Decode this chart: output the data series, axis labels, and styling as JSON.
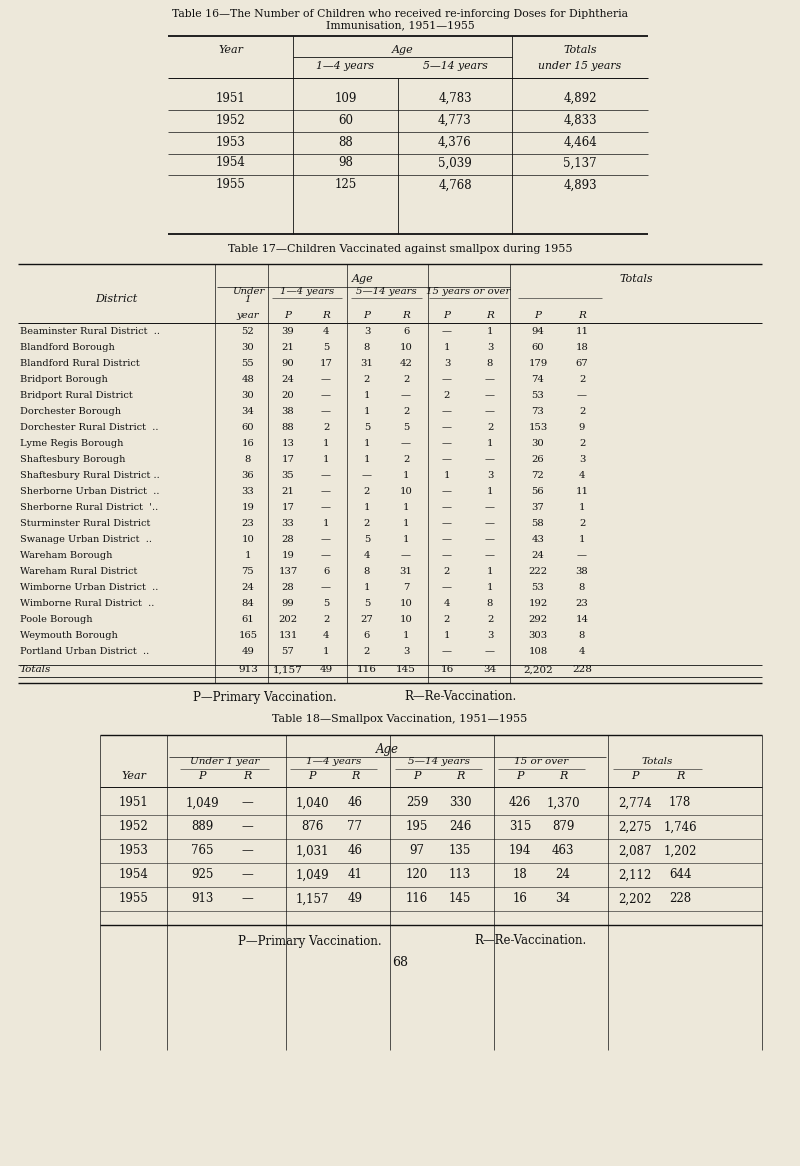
{
  "bg_color": "#ede8da",
  "page_number": "68",
  "table16": {
    "title_line1": "Table 16—The Number of Children who received re-inforcing Doses for Diphthеria",
    "title_line2": "Immunisation, 1951—1955",
    "rows": [
      [
        "1951",
        "109",
        "4,783",
        "4,892"
      ],
      [
        "1952",
        "60",
        "4,773",
        "4,833"
      ],
      [
        "1953",
        "88",
        "4,376",
        "4,464"
      ],
      [
        "1954",
        "98",
        "5,039",
        "5,137"
      ],
      [
        "1955",
        "125",
        "4,768",
        "4,893"
      ]
    ]
  },
  "table17": {
    "title": "Table 17—Children Vaccinated against smallpox during 1955",
    "rows": [
      [
        "Beaminster Rural District  ..",
        "..",
        "52",
        "39",
        "4",
        "3",
        "6",
        "—",
        "1",
        "94",
        "11"
      ],
      [
        "Blandford Borough",
        "..",
        "30",
        "21",
        "5",
        "8",
        "10",
        "1",
        "3",
        "60",
        "18"
      ],
      [
        "Blandford Rural District",
        "..",
        "55",
        "90",
        "17",
        "31",
        "42",
        "3",
        "8",
        "179",
        "67"
      ],
      [
        "Bridport Borough",
        "..",
        "48",
        "24",
        "—",
        "2",
        "2",
        "—",
        "—",
        "74",
        "2"
      ],
      [
        "Bridport Rural District",
        "..",
        "30",
        "20",
        "—",
        "1",
        "—",
        "2",
        "—",
        "53",
        "—"
      ],
      [
        "Dorchester Borough",
        "..",
        "34",
        "38",
        "—",
        "1",
        "2",
        "—",
        "—",
        "73",
        "2"
      ],
      [
        "Dorchester Rural District  ..",
        "..",
        "60",
        "88",
        "2",
        "5",
        "5",
        "—",
        "2",
        "153",
        "9"
      ],
      [
        "Lyme Regis Borough",
        "..",
        "16",
        "13",
        "1",
        "1",
        "—",
        "—",
        "1",
        "30",
        "2"
      ],
      [
        "Shaftesbury Borough",
        "..",
        "8",
        "17",
        "1",
        "1",
        "2",
        "—",
        "—",
        "26",
        "3"
      ],
      [
        "Shaftesbury Rural District ..",
        "..",
        "36",
        "35",
        "—",
        "—",
        "1",
        "1",
        "3",
        "72",
        "4"
      ],
      [
        "Sherborne Urban District  ..",
        "..",
        "33",
        "21",
        "—",
        "2",
        "10",
        "—",
        "1",
        "56",
        "11"
      ],
      [
        "Sherborne Rural District  '..",
        "..",
        "19",
        "17",
        "—",
        "1",
        "1",
        "—",
        "—",
        "37",
        "1"
      ],
      [
        "Sturminster Rural District",
        "..",
        "23",
        "33",
        "1",
        "2",
        "1",
        "—",
        "—",
        "58",
        "2"
      ],
      [
        "Swanage Urban District  ..",
        "..",
        "10",
        "28",
        "—",
        "5",
        "1",
        "—",
        "—",
        "43",
        "1"
      ],
      [
        "Wareham Borough",
        "..",
        "1",
        "19",
        "—",
        "4",
        "—",
        "—",
        "—",
        "24",
        "—"
      ],
      [
        "Wareham Rural District",
        "..",
        "75",
        "137",
        "6",
        "8",
        "31",
        "2",
        "1",
        "222",
        "38"
      ],
      [
        "Wimborne Urban District  ..",
        "..",
        "24",
        "28",
        "—",
        "1",
        "7",
        "—",
        "1",
        "53",
        "8"
      ],
      [
        "Wimborne Rural District  ..",
        "..",
        "84",
        "99",
        "5",
        "5",
        "10",
        "4",
        "8",
        "192",
        "23"
      ],
      [
        "Poole Borough",
        "..",
        "61",
        "202",
        "2",
        "27",
        "10",
        "2",
        "2",
        "292",
        "14"
      ],
      [
        "Weymouth Borough",
        "..",
        "165",
        "131",
        "4",
        "6",
        "1",
        "1",
        "3",
        "303",
        "8"
      ],
      [
        "Portland Urban District  ..",
        "..",
        "49",
        "57",
        "1",
        "2",
        "3",
        "—",
        "—",
        "108",
        "4"
      ]
    ],
    "totals": [
      "Totals",
      "..",
      "..",
      "913",
      "1,157",
      "49",
      "116",
      "145",
      "16",
      "34",
      "2,202",
      "228"
    ]
  },
  "table18": {
    "title": "Table 18—Smallpox Vaccination, 1951—1955",
    "rows": [
      [
        "1951",
        "1,049",
        "—",
        "1,040",
        "46",
        "259",
        "330",
        "426",
        "1,370",
        "2,774",
        "178"
      ],
      [
        "1952",
        "889",
        "—",
        "876",
        "77",
        "195",
        "246",
        "315",
        "879",
        "2,275",
        "1,746"
      ],
      [
        "1953",
        "765",
        "—",
        "1,031",
        "46",
        "97",
        "135",
        "194",
        "463",
        "2,087",
        "1,202"
      ],
      [
        "1954",
        "925",
        "—",
        "1,049",
        "41",
        "120",
        "113",
        "18",
        "24",
        "2,112",
        "644"
      ],
      [
        "1955",
        "913",
        "—",
        "1,157",
        "49",
        "116",
        "145",
        "16",
        "34",
        "2,202",
        "228"
      ]
    ]
  }
}
